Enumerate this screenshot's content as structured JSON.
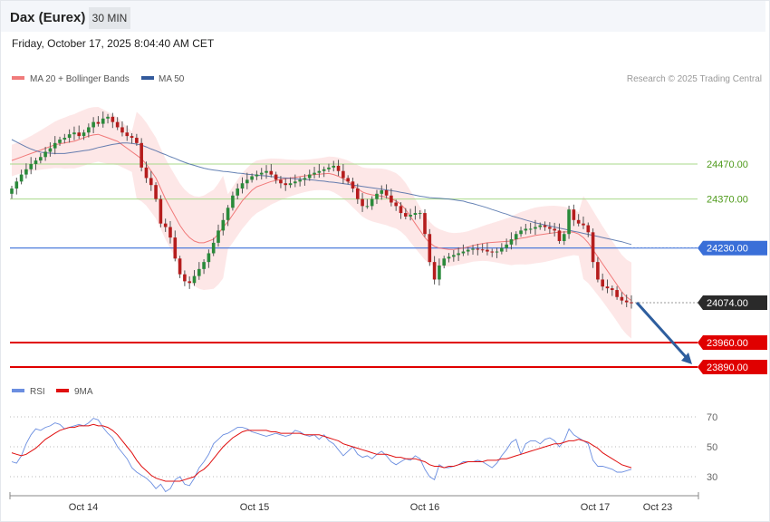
{
  "header": {
    "title": "Dax (Eurex)",
    "timeframe": "30 MIN",
    "datetime": "Friday, October 17, 2025 8:04:40 AM CET"
  },
  "colors": {
    "bollinger": "#f07b7b",
    "band_fill": "#fde3e3",
    "ma20": "#f06d6d",
    "ma50": "#335a9c",
    "candle_up": "#2a8a3a",
    "candle_down": "#b51d1d",
    "resistance": "#a8d88a",
    "resistance_text": "#4e9a1a",
    "pivot": "#3a6fd8",
    "support": "#e00000",
    "price_box": "#2a2a2a",
    "arrow": "#2e5e9e",
    "rsi": "#6b8ee0",
    "rsi_ma": "#e01010"
  },
  "chart_data": [
    {
      "type": "candlestick",
      "legend": [
        {
          "name": "MA 20 + Bollinger Bands",
          "color": "#f07b7b"
        },
        {
          "name": "MA 50",
          "color": "#335a9c"
        }
      ],
      "credit": "Research © 2025 Trading Central",
      "ylim": [
        23860,
        24660
      ],
      "x_ticks": [
        "Oct 14",
        "Oct 15",
        "Oct 16",
        "Oct 17",
        "Oct 23"
      ],
      "levels": [
        {
          "value": 24470,
          "label": "24470.00",
          "role": "resistance"
        },
        {
          "value": 24370,
          "label": "24370.00",
          "role": "resistance"
        },
        {
          "value": 24230,
          "label": "24230.00",
          "role": "pivot"
        },
        {
          "value": 24074,
          "label": "24074.00",
          "role": "last"
        },
        {
          "value": 23960,
          "label": "23960.00",
          "role": "support"
        },
        {
          "value": 23890,
          "label": "23890.00",
          "role": "support"
        }
      ],
      "forecast_arrow": {
        "from": 24074,
        "to": 23890
      },
      "close": [
        24400,
        24420,
        24440,
        24455,
        24470,
        24480,
        24490,
        24505,
        24515,
        24530,
        24540,
        24545,
        24555,
        24560,
        24550,
        24560,
        24575,
        24590,
        24585,
        24600,
        24605,
        24590,
        24575,
        24560,
        24550,
        24545,
        24530,
        24460,
        24430,
        24410,
        24370,
        24300,
        24290,
        24260,
        24200,
        24155,
        24135,
        24130,
        24150,
        24170,
        24190,
        24215,
        24245,
        24280,
        24310,
        24345,
        24380,
        24400,
        24415,
        24425,
        24435,
        24440,
        24445,
        24450,
        24440,
        24425,
        24415,
        24410,
        24415,
        24420,
        24425,
        24430,
        24440,
        24445,
        24450,
        24455,
        24460,
        24465,
        24450,
        24430,
        24420,
        24400,
        24370,
        24350,
        24350,
        24370,
        24385,
        24395,
        24380,
        24360,
        24350,
        24330,
        24320,
        24325,
        24330,
        24330,
        24270,
        24190,
        24140,
        24180,
        24200,
        24205,
        24210,
        24215,
        24220,
        24225,
        24228,
        24226,
        24225,
        24220,
        24218,
        24220,
        24230,
        24240,
        24255,
        24270,
        24280,
        24285,
        24285,
        24290,
        24295,
        24290,
        24285,
        24280,
        24250,
        24270,
        24340,
        24310,
        24300,
        24295,
        24275,
        24190,
        24140,
        24120,
        24115,
        24110,
        24090,
        24080,
        24075,
        24074
      ],
      "ma20": [
        24480,
        24485,
        24490,
        24495,
        24500,
        24505,
        24510,
        24515,
        24520,
        24525,
        24528,
        24530,
        24533,
        24535,
        24540,
        24545,
        24550,
        24553,
        24555,
        24550,
        24545,
        24540,
        24535,
        24525,
        24515,
        24505,
        24495,
        24485,
        24470,
        24450,
        24430,
        24400,
        24370,
        24345,
        24320,
        24295,
        24275,
        24260,
        24250,
        24245,
        24245,
        24250,
        24255,
        24270,
        24290,
        24305,
        24325,
        24345,
        24365,
        24380,
        24395,
        24405,
        24410,
        24415,
        24420,
        24423,
        24426,
        24428,
        24430,
        24432,
        24434,
        24436,
        24438,
        24440,
        24441,
        24442,
        24443,
        24440,
        24435,
        24428,
        24420,
        24410,
        24400,
        24390,
        24385,
        24382,
        24380,
        24378,
        24375,
        24370,
        24365,
        24355,
        24340,
        24320,
        24300,
        24280,
        24260,
        24245,
        24235,
        24230,
        24228,
        24226,
        24226,
        24228,
        24230,
        24233,
        24237,
        24240,
        24243,
        24245,
        24246,
        24247,
        24248,
        24249,
        24250,
        24255,
        24258,
        24260,
        24263,
        24266,
        24268,
        24270,
        24272,
        24274,
        24275,
        24276,
        24276,
        24275,
        24270,
        24260,
        24245,
        24225,
        24205,
        24185,
        24165,
        24145,
        24125,
        24105,
        24090,
        24080
      ],
      "ma50": [
        24540,
        24533,
        24526,
        24519,
        24513,
        24508,
        24504,
        24502,
        24501,
        24500,
        24500,
        24500,
        24502,
        24504,
        24506,
        24508,
        24510,
        24513,
        24517,
        24520,
        24523,
        24526,
        24528,
        24530,
        24530,
        24529,
        24527,
        24524,
        24519,
        24513,
        24508,
        24502,
        24497,
        24491,
        24486,
        24480,
        24475,
        24470,
        24466,
        24462,
        24458,
        24455,
        24453,
        24451,
        24449,
        24448,
        24446,
        24444,
        24443,
        24441,
        24440,
        24438,
        24437,
        24436,
        24434,
        24433,
        24431,
        24430,
        24429,
        24428,
        24427,
        24426,
        24425,
        24424,
        24422,
        24421,
        24419,
        24418,
        24416,
        24414,
        24412,
        24410,
        24408,
        24406,
        24404,
        24402,
        24400,
        24398,
        24396,
        24394,
        24392,
        24389,
        24387,
        24384,
        24381,
        24378,
        24376,
        24374,
        24373,
        24372,
        24371,
        24370,
        24368,
        24366,
        24364,
        24360,
        24357,
        24353,
        24349,
        24345,
        24340,
        24336,
        24331,
        24327,
        24322,
        24318,
        24314,
        24310,
        24306,
        24302,
        24299,
        24296,
        24293,
        24290,
        24287,
        24284,
        24281,
        24278,
        24275,
        24272,
        24269,
        24266,
        24263,
        24260,
        24257,
        24254,
        24251,
        24248,
        24244,
        24240
      ]
    },
    {
      "type": "line",
      "legend": [
        {
          "name": "RSI",
          "color": "#6b8ee0"
        },
        {
          "name": "9MA",
          "color": "#e01010"
        }
      ],
      "ylim": [
        15,
        80
      ],
      "y_ticks": [
        "70",
        "50",
        "30"
      ],
      "rsi": [
        40,
        39,
        44,
        52,
        58,
        62,
        61,
        63,
        64,
        66,
        65,
        62,
        63,
        64,
        65,
        64,
        66,
        69,
        68,
        63,
        59,
        56,
        50,
        46,
        42,
        36,
        33,
        31,
        29,
        26,
        22,
        25,
        20,
        22,
        28,
        30,
        25,
        24,
        29,
        36,
        40,
        45,
        52,
        55,
        58,
        59,
        61,
        63,
        63,
        62,
        60,
        59,
        58,
        57,
        58,
        59,
        58,
        57,
        58,
        61,
        60,
        58,
        57,
        58,
        55,
        58,
        54,
        52,
        48,
        44,
        47,
        50,
        45,
        43,
        44,
        42,
        45,
        47,
        44,
        40,
        38,
        40,
        42,
        41,
        44,
        42,
        35,
        30,
        28,
        38,
        36,
        36,
        37,
        38,
        40,
        40,
        40,
        41,
        40,
        38,
        36,
        39,
        44,
        48,
        53,
        55,
        45,
        52,
        54,
        54,
        52,
        55,
        56,
        54,
        50,
        54,
        62,
        58,
        56,
        54,
        52,
        41,
        37,
        37,
        36,
        35,
        33,
        33,
        34,
        35
      ],
      "ma": [
        46,
        45,
        44,
        45,
        47,
        49,
        52,
        55,
        57,
        59,
        61,
        62,
        63,
        63,
        64,
        64,
        64,
        65,
        64,
        64,
        63,
        61,
        58,
        54,
        50,
        46,
        41,
        37,
        34,
        31,
        29,
        28,
        27,
        27,
        27,
        27,
        28,
        29,
        30,
        33,
        35,
        38,
        42,
        46,
        50,
        53,
        56,
        58,
        60,
        61,
        61,
        61,
        61,
        61,
        60,
        60,
        59,
        59,
        59,
        59,
        59,
        58,
        58,
        58,
        58,
        57,
        56,
        55,
        54,
        52,
        51,
        50,
        49,
        48,
        47,
        46,
        45,
        45,
        45,
        44,
        43,
        43,
        42,
        42,
        42,
        41,
        40,
        38,
        37,
        37,
        36,
        37,
        37,
        38,
        39,
        40,
        40,
        40,
        40,
        41,
        41,
        41,
        42,
        42,
        43,
        44,
        45,
        46,
        47,
        48,
        49,
        50,
        51,
        52,
        52,
        53,
        54,
        54,
        55,
        54,
        53,
        51,
        49,
        46,
        44,
        42,
        40,
        38,
        37,
        36
      ]
    }
  ]
}
